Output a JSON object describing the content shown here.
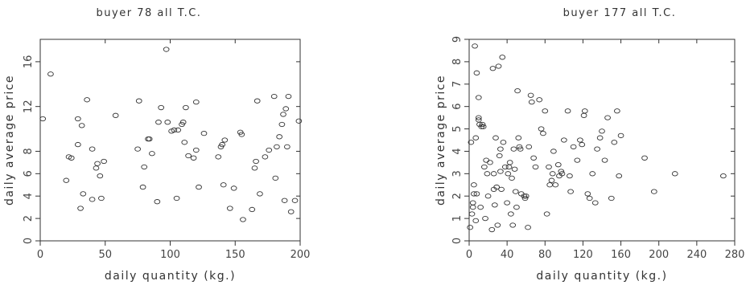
{
  "chart_data": [
    {
      "type": "scatter",
      "title": "buyer 78 all T.C.",
      "xlabel": "daily quantity (kg.)",
      "ylabel": "daily average price",
      "xlim": [
        0,
        200
      ],
      "ylim": [
        0,
        18
      ],
      "xticks": [
        0,
        50,
        100,
        150,
        200
      ],
      "yticks": [
        0,
        2,
        4,
        6,
        8,
        12,
        16
      ],
      "ytick_labels": [
        "0",
        "2",
        "4",
        "6",
        "8",
        "12",
        "16"
      ],
      "grid": false,
      "points": [
        [
          2,
          10.9
        ],
        [
          8,
          14.9
        ],
        [
          20,
          5.4
        ],
        [
          22,
          7.5
        ],
        [
          24,
          7.4
        ],
        [
          29,
          10.9
        ],
        [
          29,
          8.6
        ],
        [
          31,
          2.9
        ],
        [
          32,
          10.3
        ],
        [
          33,
          4.2
        ],
        [
          36,
          12.6
        ],
        [
          40,
          8.2
        ],
        [
          40,
          3.7
        ],
        [
          43,
          6.5
        ],
        [
          44,
          6.9
        ],
        [
          46,
          5.8
        ],
        [
          47,
          3.8
        ],
        [
          49,
          7.1
        ],
        [
          58,
          11.2
        ],
        [
          75,
          8.2
        ],
        [
          76,
          12.5
        ],
        [
          79,
          4.8
        ],
        [
          80,
          6.6
        ],
        [
          83,
          9.1
        ],
        [
          84,
          9.1
        ],
        [
          86,
          7.8
        ],
        [
          90,
          3.5
        ],
        [
          91,
          10.6
        ],
        [
          93,
          11.9
        ],
        [
          97,
          17.1
        ],
        [
          98,
          10.6
        ],
        [
          101,
          9.8
        ],
        [
          103,
          9.9
        ],
        [
          105,
          3.8
        ],
        [
          106,
          9.9
        ],
        [
          109,
          10.4
        ],
        [
          110,
          10.6
        ],
        [
          111,
          8.8
        ],
        [
          112,
          11.9
        ],
        [
          114,
          7.6
        ],
        [
          118,
          7.4
        ],
        [
          120,
          12.4
        ],
        [
          120,
          8.1
        ],
        [
          122,
          4.8
        ],
        [
          126,
          9.6
        ],
        [
          137,
          7.5
        ],
        [
          139,
          8.4
        ],
        [
          140,
          8.6
        ],
        [
          141,
          5.0
        ],
        [
          142,
          9.0
        ],
        [
          146,
          2.9
        ],
        [
          149,
          4.7
        ],
        [
          154,
          9.7
        ],
        [
          155,
          9.5
        ],
        [
          156,
          1.9
        ],
        [
          163,
          2.8
        ],
        [
          165,
          6.5
        ],
        [
          166,
          7.1
        ],
        [
          167,
          12.5
        ],
        [
          169,
          4.2
        ],
        [
          173,
          7.5
        ],
        [
          176,
          8.1
        ],
        [
          180,
          12.9
        ],
        [
          181,
          5.6
        ],
        [
          182,
          8.4
        ],
        [
          184,
          9.3
        ],
        [
          186,
          10.4
        ],
        [
          187,
          11.3
        ],
        [
          188,
          3.6
        ],
        [
          189,
          11.8
        ],
        [
          190,
          8.4
        ],
        [
          191,
          12.9
        ],
        [
          193,
          2.6
        ],
        [
          196,
          3.6
        ],
        [
          199,
          10.7
        ]
      ]
    },
    {
      "type": "scatter",
      "title": "buyer 177 all T.C.",
      "xlabel": "daily quantity (kg.)",
      "ylabel": "daily average price",
      "xlim": [
        0,
        280
      ],
      "ylim": [
        0,
        9
      ],
      "xticks": [
        0,
        40,
        80,
        120,
        160,
        200,
        240,
        280
      ],
      "yticks": [
        0,
        1,
        2,
        3,
        4,
        5,
        6,
        7,
        8,
        9
      ],
      "ytick_labels": [
        "0",
        "1",
        "2",
        "3",
        "4",
        "5",
        "6",
        "7",
        "8",
        "9"
      ],
      "grid": false,
      "points": [
        [
          1,
          0.6
        ],
        [
          2,
          4.4
        ],
        [
          3,
          1.2
        ],
        [
          4,
          1.7
        ],
        [
          4,
          1.5
        ],
        [
          5,
          2.1
        ],
        [
          5,
          2.5
        ],
        [
          6,
          8.7
        ],
        [
          7,
          0.9
        ],
        [
          7,
          4.6
        ],
        [
          8,
          7.5
        ],
        [
          8,
          2.1
        ],
        [
          10,
          5.5
        ],
        [
          10,
          5.4
        ],
        [
          10,
          6.4
        ],
        [
          11,
          5.2
        ],
        [
          12,
          1.5
        ],
        [
          13,
          5.1
        ],
        [
          14,
          5.2
        ],
        [
          15,
          5.1
        ],
        [
          16,
          3.3
        ],
        [
          17,
          1.0
        ],
        [
          18,
          3.6
        ],
        [
          19,
          3.0
        ],
        [
          20,
          2.0
        ],
        [
          22,
          3.5
        ],
        [
          24,
          0.5
        ],
        [
          25,
          7.7
        ],
        [
          26,
          3.0
        ],
        [
          26,
          2.3
        ],
        [
          27,
          1.6
        ],
        [
          28,
          4.6
        ],
        [
          29,
          2.4
        ],
        [
          30,
          0.7
        ],
        [
          31,
          7.8
        ],
        [
          32,
          3.8
        ],
        [
          33,
          4.1
        ],
        [
          33,
          3.1
        ],
        [
          34,
          2.3
        ],
        [
          35,
          8.2
        ],
        [
          36,
          4.4
        ],
        [
          38,
          3.3
        ],
        [
          40,
          1.7
        ],
        [
          41,
          3.0
        ],
        [
          42,
          3.3
        ],
        [
          43,
          3.5
        ],
        [
          44,
          1.2
        ],
        [
          45,
          2.8
        ],
        [
          46,
          0.7
        ],
        [
          47,
          4.1
        ],
        [
          48,
          3.2
        ],
        [
          49,
          2.2
        ],
        [
          50,
          1.5
        ],
        [
          51,
          6.7
        ],
        [
          52,
          4.6
        ],
        [
          53,
          4.2
        ],
        [
          54,
          4.1
        ],
        [
          55,
          2.1
        ],
        [
          58,
          2.0
        ],
        [
          59,
          1.9
        ],
        [
          60,
          2.0
        ],
        [
          62,
          0.6
        ],
        [
          63,
          4.2
        ],
        [
          65,
          6.5
        ],
        [
          66,
          6.2
        ],
        [
          68,
          3.7
        ],
        [
          70,
          3.3
        ],
        [
          74,
          6.3
        ],
        [
          76,
          5.0
        ],
        [
          78,
          4.8
        ],
        [
          80,
          5.8
        ],
        [
          82,
          1.2
        ],
        [
          84,
          3.3
        ],
        [
          85,
          2.5
        ],
        [
          87,
          2.7
        ],
        [
          88,
          3.0
        ],
        [
          89,
          4.0
        ],
        [
          91,
          2.5
        ],
        [
          94,
          3.4
        ],
        [
          95,
          2.9
        ],
        [
          97,
          3.1
        ],
        [
          98,
          3.0
        ],
        [
          100,
          4.5
        ],
        [
          104,
          5.8
        ],
        [
          106,
          2.9
        ],
        [
          107,
          2.2
        ],
        [
          110,
          4.2
        ],
        [
          114,
          3.6
        ],
        [
          117,
          4.5
        ],
        [
          119,
          4.3
        ],
        [
          121,
          5.6
        ],
        [
          122,
          5.8
        ],
        [
          125,
          2.1
        ],
        [
          127,
          1.9
        ],
        [
          130,
          3.0
        ],
        [
          133,
          1.7
        ],
        [
          135,
          4.1
        ],
        [
          138,
          4.6
        ],
        [
          140,
          4.9
        ],
        [
          143,
          3.6
        ],
        [
          146,
          5.5
        ],
        [
          150,
          1.9
        ],
        [
          153,
          4.4
        ],
        [
          156,
          5.8
        ],
        [
          158,
          2.9
        ],
        [
          160,
          4.7
        ],
        [
          185,
          3.7
        ],
        [
          195,
          2.2
        ],
        [
          217,
          3.0
        ],
        [
          268,
          2.9
        ]
      ]
    }
  ]
}
